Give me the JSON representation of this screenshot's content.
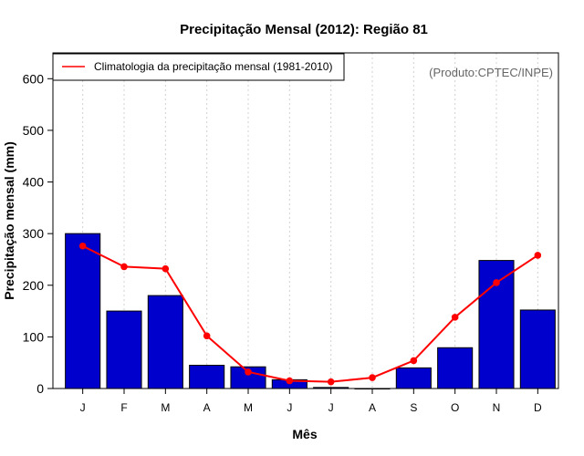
{
  "chart_data": {
    "type": "bar",
    "title": "Precipitação Mensal (2012): Região 81",
    "xlabel": "Mês",
    "ylabel": "Precipitação mensal (mm)",
    "ylim": [
      0,
      650
    ],
    "yticks": [
      0,
      100,
      200,
      300,
      400,
      500,
      600
    ],
    "categories": [
      "J",
      "F",
      "M",
      "A",
      "M",
      "J",
      "J",
      "A",
      "S",
      "O",
      "N",
      "D"
    ],
    "series": [
      {
        "name": "Precipitação mensal (2012)",
        "type": "bar",
        "color": "#0000CD",
        "values": [
          300,
          150,
          180,
          45,
          42,
          17,
          2,
          0,
          40,
          79,
          248,
          152
        ]
      },
      {
        "name": "Climatologia da precipitação mensal (1981-2010)",
        "type": "line",
        "color": "#FF0000",
        "values": [
          276,
          236,
          232,
          102,
          32,
          15,
          13,
          21,
          54,
          138,
          205,
          258
        ]
      }
    ],
    "legend": {
      "position": "top-left",
      "label": "Climatologia da precipitação mensal (1981-2010)"
    },
    "grid": "vertical-dotted",
    "annotation": "(Produto:CPTEC/INPE)"
  }
}
